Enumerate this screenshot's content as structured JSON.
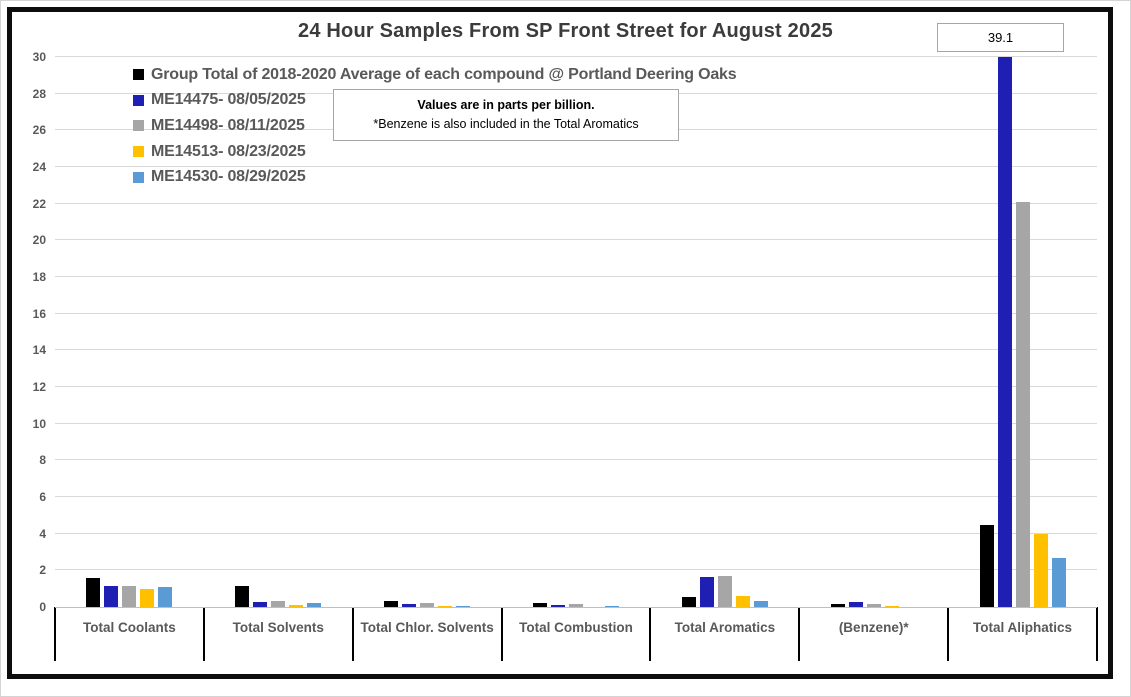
{
  "title": "24 Hour Samples From SP Front Street for August 2025",
  "overflow_label": {
    "value": "39.1"
  },
  "note": {
    "line1": "Values are in parts per billion.",
    "line2": "*Benzene is also included in the Total Aromatics"
  },
  "chart_data": {
    "type": "bar",
    "title": "24 Hour Samples From SP Front Street for August 2025",
    "units": "parts per billion",
    "categories": [
      "Total Coolants",
      "Total Solvents",
      "Total Chlor. Solvents",
      "Total Combustion",
      "Total Aromatics",
      "(Benzene)*",
      "Total Aliphatics"
    ],
    "series": [
      {
        "name": "Group Total of 2018-2020 Average of each compound @ Portland Deering Oaks",
        "color": "#000000",
        "values": [
          1.6,
          1.15,
          0.32,
          0.2,
          0.55,
          0.15,
          4.5
        ]
      },
      {
        "name": "ME14475- 08/05/2025",
        "color": "#1f1fb4",
        "values": [
          1.15,
          0.25,
          0.16,
          0.1,
          1.65,
          0.28,
          39.1
        ]
      },
      {
        "name": "ME14498- 08/11/2025",
        "color": "#a6a6a6",
        "values": [
          1.15,
          0.35,
          0.2,
          0.16,
          1.7,
          0.18,
          22.1
        ]
      },
      {
        "name": "ME14513- 08/23/2025",
        "color": "#ffc000",
        "values": [
          1.0,
          0.12,
          0.08,
          0,
          0.58,
          0.05,
          4.0
        ]
      },
      {
        "name": "ME14530- 08/29/2025",
        "color": "#5b9bd5",
        "values": [
          1.1,
          0.2,
          0.08,
          0.05,
          0.35,
          0,
          2.7
        ]
      }
    ],
    "ylim": [
      0,
      30
    ],
    "ytick_step": 2,
    "grid": true,
    "legend_position": "top-left-inside",
    "annotations": [
      {
        "text": "39.1",
        "series": "ME14475- 08/05/2025",
        "category": "Total Aliphatics",
        "note": "bar exceeds y-axis maximum and is clipped at 30"
      }
    ]
  }
}
